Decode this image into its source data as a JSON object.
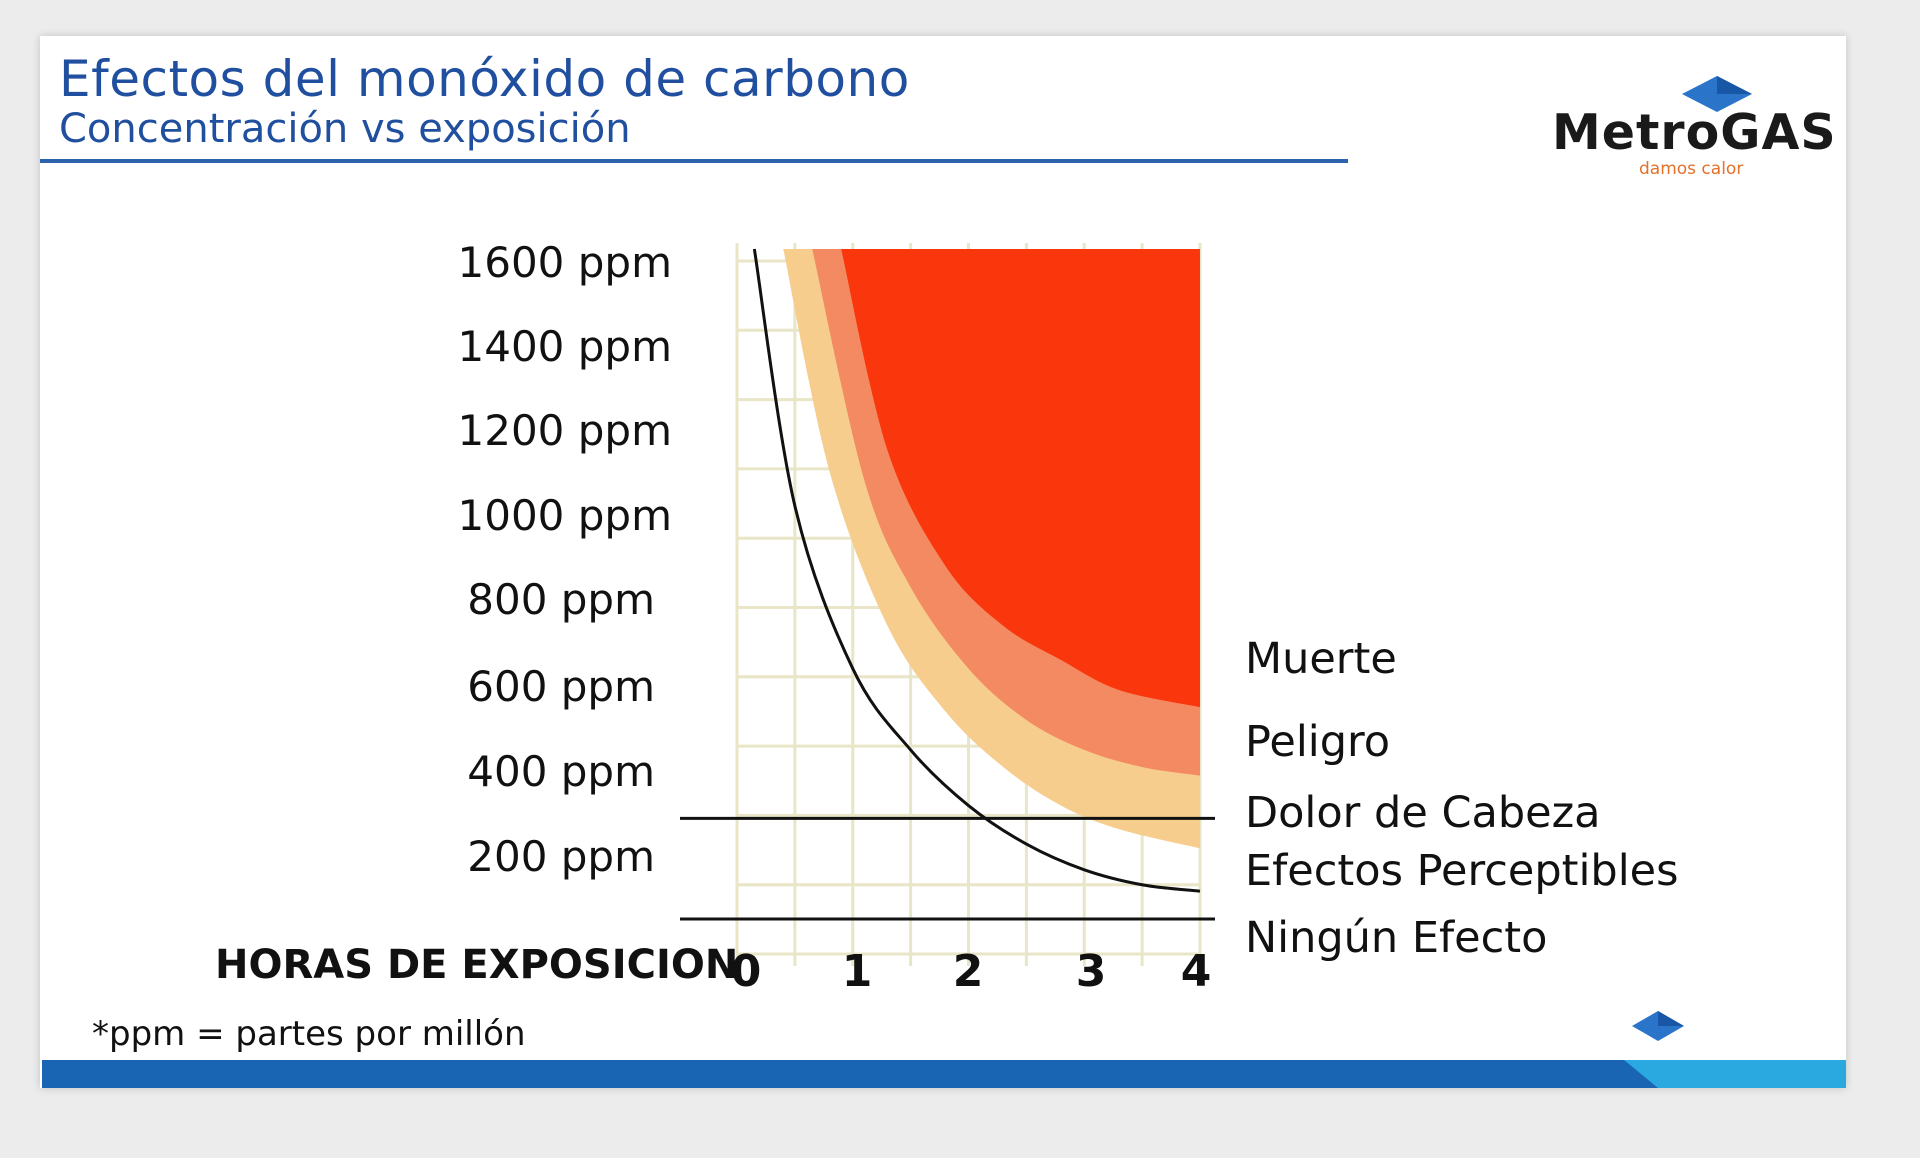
{
  "slide": {
    "title": "Efectos del monóxido de carbono",
    "subtitle": "Concentración vs exposición",
    "footnote": "*ppm = partes por millón"
  },
  "logo": {
    "name": "MetroGAS",
    "tagline": "damos calor",
    "icon": "blue-diamond-icon"
  },
  "colors": {
    "title": "#1f4f9e",
    "footer_dark": "#1a64b4",
    "footer_light": "#2aa9e0",
    "muerte": "#f9360c",
    "peligro": "#f38a62",
    "dolor": "#f6cd8c",
    "grid": "#e8e6c6"
  },
  "chart_data": {
    "type": "area",
    "title": "",
    "xlabel": "HORAS DE EXPOSICION",
    "ylabel": "",
    "x_ticks": [
      "0",
      "1",
      "2",
      "3",
      "4"
    ],
    "y_ticks": [
      "200 ppm",
      "400 ppm",
      "600 ppm",
      "800 ppm",
      "1000 ppm",
      "1200 ppm",
      "1400 ppm",
      "1600 ppm"
    ],
    "xlim": [
      0,
      4
    ],
    "ylim": [
      0,
      1600
    ],
    "grid": true,
    "zones": [
      "Muerte",
      "Peligro",
      "Dolor de Cabeza",
      "Efectos Perceptibles",
      "Ningún Efecto"
    ],
    "thresholds": [
      {
        "name": "Ningún Efecto",
        "y": 35
      },
      {
        "name": "Dolor de Cabeza",
        "y": 270
      }
    ],
    "curves": [
      {
        "name": "Efectos Perceptibles",
        "x": [
          0.15,
          0.5,
          1.0,
          1.5,
          2.0,
          2.5,
          3.0,
          3.5,
          4.0
        ],
        "y": [
          1600,
          1000,
          620,
          430,
          300,
          210,
          150,
          115,
          100
        ]
      },
      {
        "name": "Dolor de Cabeza",
        "x": [
          0.4,
          0.8,
          1.3,
          1.8,
          2.3,
          2.8,
          3.3,
          4.0
        ],
        "y": [
          1600,
          1080,
          720,
          520,
          390,
          300,
          245,
          200
        ]
      },
      {
        "name": "Peligro",
        "x": [
          0.65,
          1.1,
          1.5,
          2.0,
          2.5,
          3.0,
          3.5,
          4.0
        ],
        "y": [
          1600,
          1060,
          810,
          620,
          500,
          430,
          390,
          370
        ]
      },
      {
        "name": "Muerte",
        "x": [
          0.9,
          1.3,
          1.8,
          2.3,
          2.8,
          3.3,
          4.0
        ],
        "y": [
          1600,
          1130,
          860,
          720,
          640,
          570,
          530
        ]
      }
    ]
  }
}
